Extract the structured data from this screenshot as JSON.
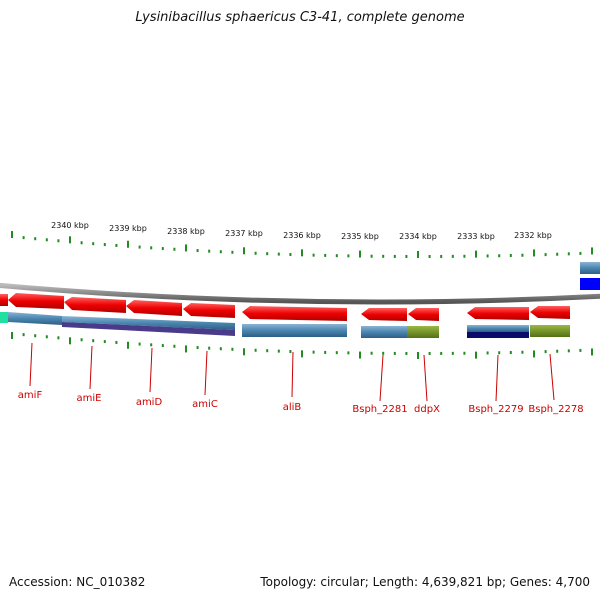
{
  "title": "Lysinibacillus sphaericus C3-41, complete genome",
  "footer": {
    "accession": "Accession: NC_010382",
    "summary": "Topology: circular; Length: 4,639,821 bp; Genes: 4,700"
  },
  "axis": {
    "ticks": [
      {
        "label": "2340 kbp"
      },
      {
        "label": "2339 kbp"
      },
      {
        "label": "2338 kbp"
      },
      {
        "label": "2337 kbp"
      },
      {
        "label": "2336 kbp"
      },
      {
        "label": "2335 kbp"
      },
      {
        "label": "2334 kbp"
      },
      {
        "label": "2333 kbp"
      },
      {
        "label": "2332 kbp"
      }
    ]
  },
  "genes": [
    {
      "name": "amiF"
    },
    {
      "name": "amiE"
    },
    {
      "name": "amiD"
    },
    {
      "name": "amiC"
    },
    {
      "name": "aliB"
    },
    {
      "name": "Bsph_2281"
    },
    {
      "name": "ddpX"
    },
    {
      "name": "Bsph_2279"
    },
    {
      "name": "Bsph_2278"
    }
  ],
  "colors": {
    "gene": "#e80000",
    "cds_band": "#4a86b0",
    "tick": "#228b22",
    "backbone": "#888888",
    "label": "#cc0000",
    "olive": "#6a8a1a",
    "navy": "#0a0a6a",
    "purple": "#4a3a8a",
    "teal": "#20e0a0",
    "blue": "#0000ff"
  }
}
